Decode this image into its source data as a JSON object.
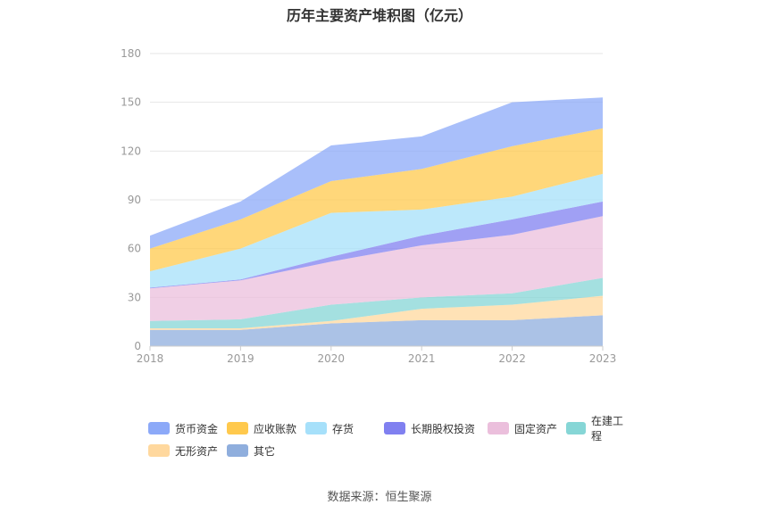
{
  "chart_data": {
    "type": "area",
    "stacked": true,
    "title": "历年主要资产堆积图（亿元）",
    "categories": [
      "2018",
      "2019",
      "2020",
      "2021",
      "2022",
      "2023"
    ],
    "ylim": [
      0,
      180
    ],
    "yticks": [
      0,
      30,
      60,
      90,
      120,
      150,
      180
    ],
    "grid": true,
    "legend_position": "bottom",
    "series": [
      {
        "name": "其它",
        "color": "#8faedd",
        "values": [
          10,
          10,
          14,
          16,
          16,
          19
        ]
      },
      {
        "name": "无形资产",
        "color": "#ffd89e",
        "values": [
          1,
          1,
          1.5,
          7,
          9.5,
          12
        ]
      },
      {
        "name": "在建工程",
        "color": "#86d6d6",
        "values": [
          4.5,
          5.5,
          10,
          7,
          7,
          11
        ]
      },
      {
        "name": "固定资产",
        "color": "#ebbfdc",
        "values": [
          20,
          24,
          26.5,
          32,
          36,
          38
        ]
      },
      {
        "name": "长期股权投资",
        "color": "#8080f0",
        "values": [
          0.5,
          0.5,
          3,
          6,
          9.5,
          9
        ]
      },
      {
        "name": "存货",
        "color": "#a6e0fa",
        "values": [
          10,
          19,
          27,
          16,
          14,
          17
        ]
      },
      {
        "name": "应收账款",
        "color": "#ffc94d",
        "values": [
          14,
          18,
          19.5,
          25,
          31,
          28
        ]
      },
      {
        "name": "货币资金",
        "color": "#8ca9f8",
        "values": [
          8,
          11,
          22,
          20,
          27,
          19
        ]
      }
    ],
    "legend_order": [
      "货币资金",
      "应收账款",
      "存货",
      "长期股权投资",
      "固定资产",
      "在建工程",
      "无形资产",
      "其它"
    ]
  },
  "footer": {
    "source": "数据来源：恒生聚源"
  }
}
